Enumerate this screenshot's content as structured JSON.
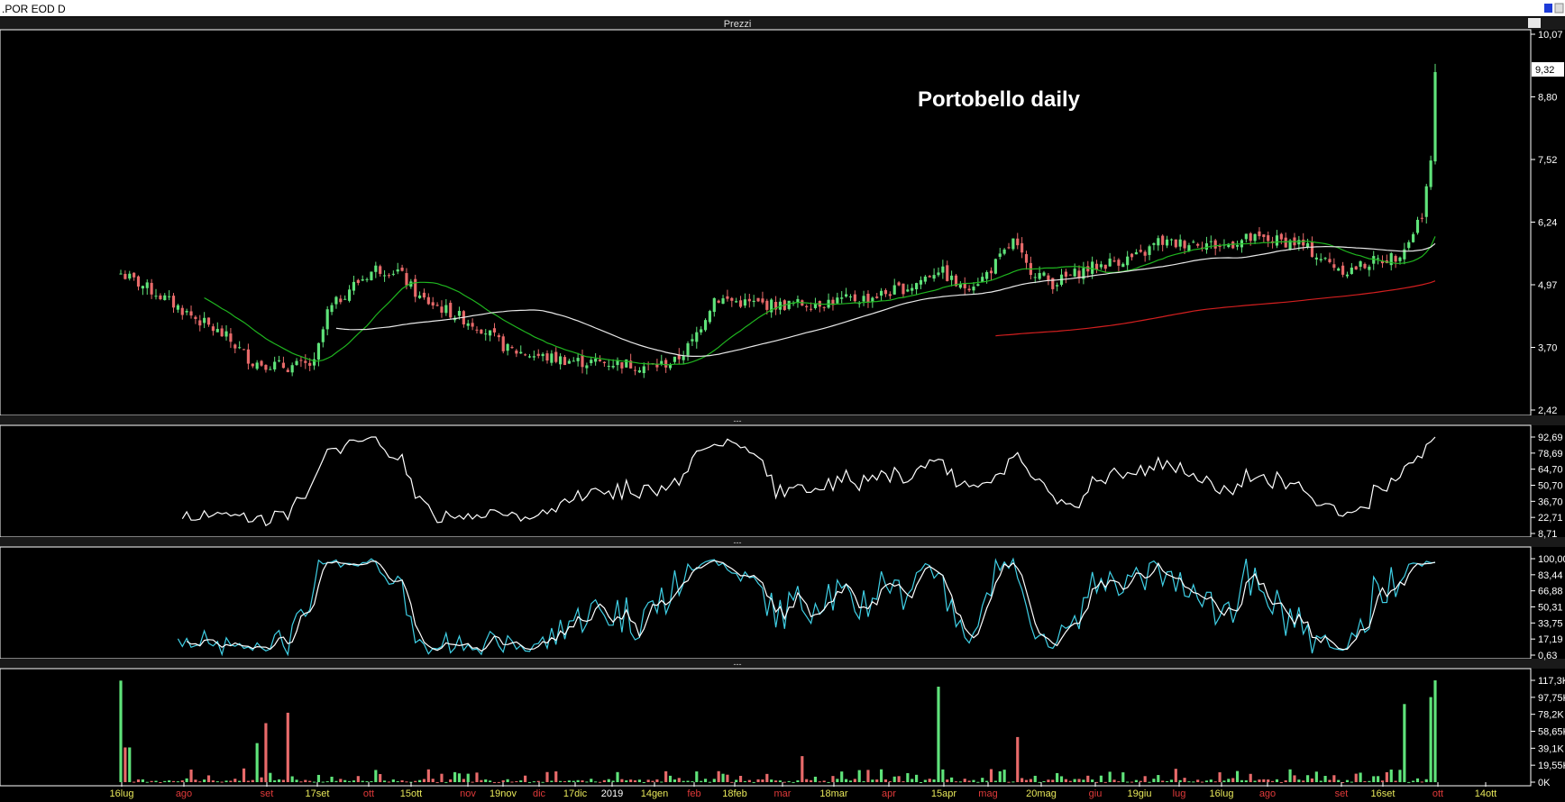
{
  "window": {
    "title": ".POR EOD D",
    "pane_title": "Prezzi",
    "pane_handle": "---"
  },
  "colors": {
    "up": "#5fe37a",
    "down": "#e86a6a",
    "ma_short": "#1fb51f",
    "ma_long": "#e8e8e8",
    "ma_red": "#d21f1f",
    "osc_line": "#ffffff",
    "stoch_k": "#3fd0e6",
    "stoch_d": "#ffffff",
    "grid_frame": "#ffffff",
    "highlight": "#ffffff"
  },
  "chart_data": [
    {
      "type": "candlestick",
      "title": "Portobello daily",
      "x_ticks": [
        {
          "label": "16lug",
          "color": "yellow"
        },
        {
          "label": "ago",
          "color": "red"
        },
        {
          "label": "set",
          "color": "red"
        },
        {
          "label": "17set",
          "color": "yellow"
        },
        {
          "label": "ott",
          "color": "red"
        },
        {
          "label": "15ott",
          "color": "yellow"
        },
        {
          "label": "nov",
          "color": "red"
        },
        {
          "label": "19nov",
          "color": "yellow"
        },
        {
          "label": "dic",
          "color": "red"
        },
        {
          "label": "17dic",
          "color": "yellow"
        },
        {
          "label": "2019",
          "color": "white"
        },
        {
          "label": "14gen",
          "color": "yellow"
        },
        {
          "label": "feb",
          "color": "red"
        },
        {
          "label": "18feb",
          "color": "yellow"
        },
        {
          "label": "mar",
          "color": "red"
        },
        {
          "label": "18mar",
          "color": "yellow"
        },
        {
          "label": "apr",
          "color": "red"
        },
        {
          "label": "15apr",
          "color": "yellow"
        },
        {
          "label": "mag",
          "color": "red"
        },
        {
          "label": "20mag",
          "color": "yellow"
        },
        {
          "label": "giu",
          "color": "red"
        },
        {
          "label": "19giu",
          "color": "yellow"
        },
        {
          "label": "lug",
          "color": "red"
        },
        {
          "label": "16lug",
          "color": "yellow"
        },
        {
          "label": "ago",
          "color": "red"
        },
        {
          "label": "set",
          "color": "red"
        },
        {
          "label": "16set",
          "color": "yellow"
        },
        {
          "label": "ott",
          "color": "red"
        },
        {
          "label": "14ott",
          "color": "yellow"
        }
      ],
      "y_ticks": [
        "10,07",
        "8,80",
        "7,52",
        "6,24",
        "4,97",
        "3,70",
        "2,42"
      ],
      "ylim": [
        2.42,
        10.07
      ],
      "last_price": "9,32",
      "moving_averages": [
        "green short MA",
        "white long MA",
        "red very long MA"
      ]
    },
    {
      "type": "line",
      "y_ticks": [
        "92,69",
        "78,69",
        "64,70",
        "50,70",
        "36,70",
        "22,71",
        "8,71"
      ],
      "ylim": [
        8.71,
        92.69
      ]
    },
    {
      "type": "line",
      "y_ticks": [
        "100,00",
        "83,44",
        "66,88",
        "50,31",
        "33,75",
        "17,19",
        "0,63"
      ],
      "ylim": [
        0.63,
        100
      ]
    },
    {
      "type": "bar",
      "y_ticks": [
        "117,3K",
        "97,75K",
        "78,2K",
        "58,65K",
        "39,1K",
        "19,55K",
        "0K"
      ],
      "ylim": [
        0,
        117300
      ]
    }
  ]
}
